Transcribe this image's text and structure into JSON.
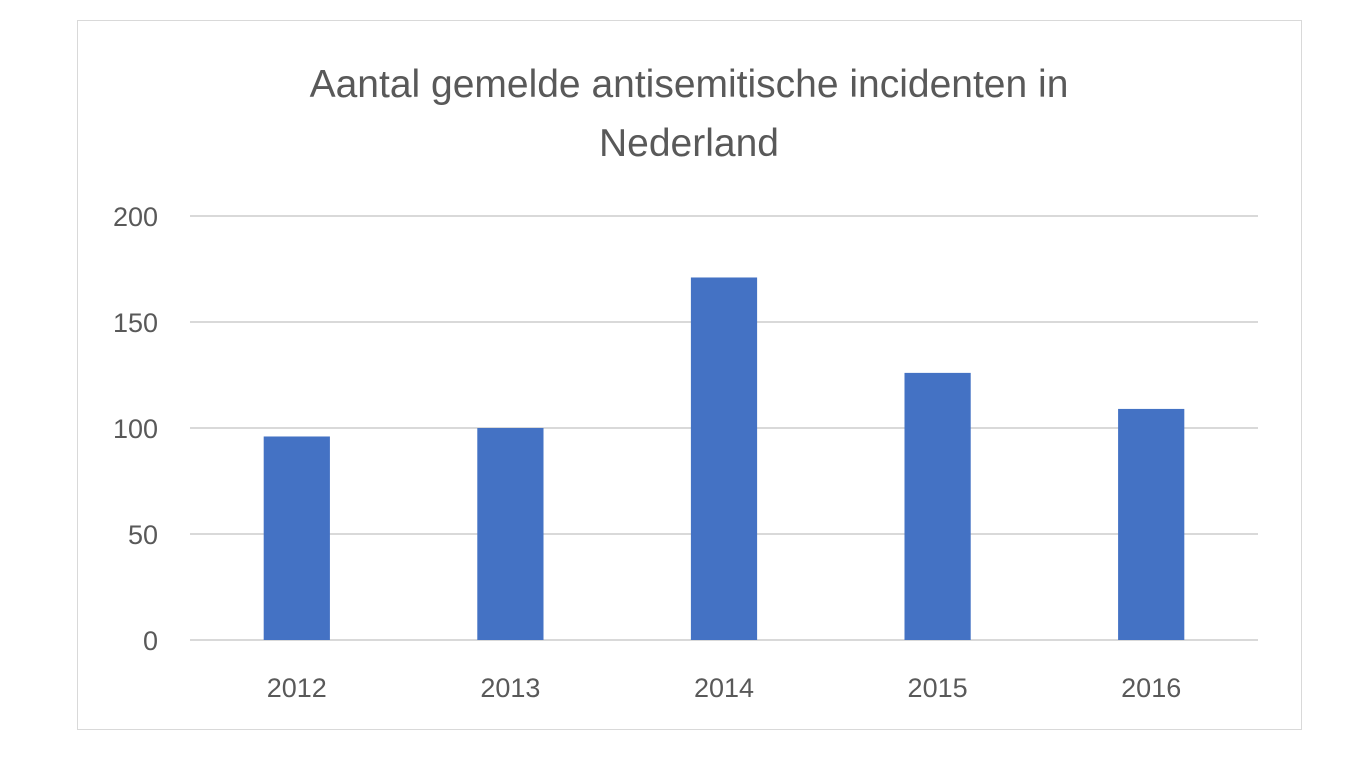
{
  "chart_data": {
    "type": "bar",
    "title_lines": [
      "Aantal gemelde antisemitische incidenten in",
      "Nederland"
    ],
    "categories": [
      "2012",
      "2013",
      "2014",
      "2015",
      "2016"
    ],
    "values": [
      96,
      100,
      171,
      126,
      109
    ],
    "xlabel": "",
    "ylabel": "",
    "ylim": [
      0,
      200
    ],
    "yticks": [
      0,
      50,
      100,
      150,
      200
    ],
    "grid": true,
    "legend": "none",
    "bar_color": "#4472C4",
    "grid_color": "#d9d9d9",
    "text_color": "#595959"
  }
}
